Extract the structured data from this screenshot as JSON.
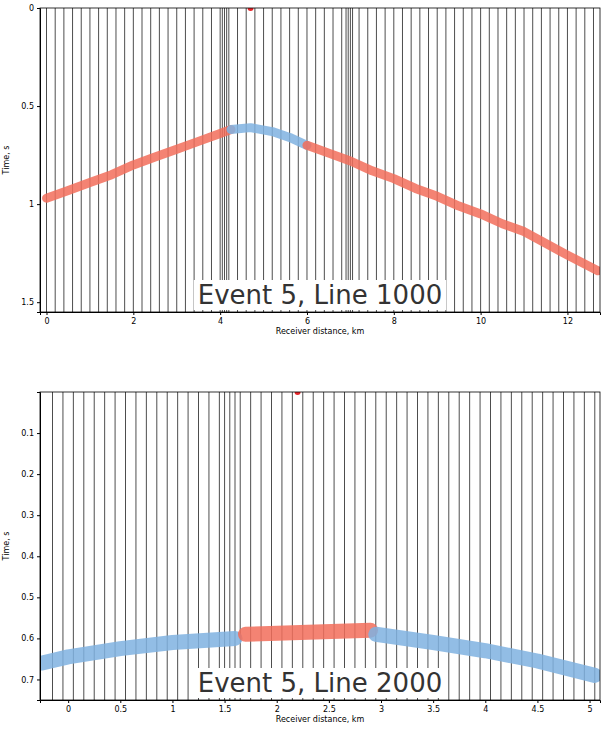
{
  "chart_data": [
    {
      "type": "line",
      "annotation": "Event 5, Line 1000",
      "x_label": "Receiver distance, km",
      "y_label": "Time, s",
      "xlim": [
        -0.15,
        12.75
      ],
      "ylim": [
        0,
        1.55
      ],
      "xticks": [
        0,
        2,
        4,
        6,
        8,
        10,
        12
      ],
      "yticks": [
        0,
        0.5,
        1,
        1.5
      ],
      "receivers": [
        0,
        0.2,
        0.4,
        0.6,
        0.8,
        1,
        1.2,
        1.4,
        1.6,
        1.8,
        2,
        2.2,
        2.4,
        2.6,
        2.8,
        3,
        3.2,
        3.4,
        3.6,
        3.8,
        4,
        4.05,
        4.1,
        4.15,
        4.2,
        4.4,
        4.6,
        4.8,
        5,
        5.2,
        5.4,
        5.6,
        5.8,
        6,
        6.2,
        6.4,
        6.6,
        6.8,
        6.9,
        6.95,
        7,
        7.05,
        7.2,
        7.4,
        7.6,
        7.8,
        8,
        8.2,
        8.4,
        8.6,
        8.8,
        9,
        9.2,
        9.4,
        9.6,
        9.8,
        10,
        10.2,
        10.4,
        10.6,
        10.8,
        11,
        11.2,
        11.4,
        11.6,
        11.8,
        12,
        12.2,
        12.4,
        12.6
      ],
      "source": {
        "x": 4.7,
        "y": 0
      },
      "series": [
        {
          "color": "#f26d5b",
          "x": [
            0,
            0.5,
            1,
            1.5,
            2,
            2.5,
            3,
            3.5,
            4,
            4.25
          ],
          "values": [
            0.97,
            0.93,
            0.89,
            0.85,
            0.8,
            0.76,
            0.72,
            0.68,
            0.64,
            0.62
          ]
        },
        {
          "color": "#7fb2e0",
          "x": [
            4.25,
            4.7,
            5.2,
            5.6,
            6
          ],
          "values": [
            0.62,
            0.61,
            0.63,
            0.66,
            0.7
          ]
        },
        {
          "color": "#f26d5b",
          "x": [
            6,
            6.5,
            7,
            7.5,
            8,
            8.5,
            9,
            9.5,
            10,
            10.5,
            11,
            11.5,
            12,
            12.7
          ],
          "values": [
            0.7,
            0.74,
            0.78,
            0.83,
            0.87,
            0.92,
            0.96,
            1.01,
            1.05,
            1.1,
            1.14,
            1.2,
            1.26,
            1.34
          ]
        }
      ]
    },
    {
      "type": "line",
      "annotation": "Event 5, Line 2000",
      "x_label": "Receiver distance, km",
      "y_label": "Time, s",
      "xlim": [
        -0.27,
        5.1
      ],
      "ylim": [
        0,
        0.75
      ],
      "xticks": [
        0,
        0.5,
        1,
        1.5,
        2,
        2.5,
        3,
        3.5,
        4,
        4.5,
        5
      ],
      "yticks": [
        0.1,
        0.2,
        0.3,
        0.4,
        0.5,
        0.6,
        0.7
      ],
      "receivers": [
        -0.15,
        -0.05,
        0.05,
        0.15,
        0.25,
        0.35,
        0.45,
        0.55,
        0.65,
        0.75,
        0.85,
        0.95,
        1.05,
        1.15,
        1.25,
        1.35,
        1.45,
        1.5,
        1.55,
        1.6,
        1.65,
        1.75,
        1.85,
        1.95,
        2.05,
        2.15,
        2.25,
        2.35,
        2.45,
        2.55,
        2.65,
        2.75,
        2.85,
        2.95,
        3.05,
        3.15,
        3.25,
        3.35,
        3.45,
        3.55,
        3.65,
        3.75,
        3.85,
        3.95,
        4.05,
        4.15,
        4.25,
        4.35,
        4.45,
        4.55,
        4.65,
        4.75,
        4.85,
        4.95,
        5.05
      ],
      "source": {
        "x": 2.2,
        "y": 0
      },
      "series": [
        {
          "color": "#7fb2e0",
          "x": [
            -0.25,
            0,
            0.5,
            1,
            1.6
          ],
          "values": [
            0.66,
            0.645,
            0.625,
            0.61,
            0.6
          ]
        },
        {
          "color": "#f26d5b",
          "x": [
            1.7,
            2.3,
            2.9
          ],
          "values": [
            0.59,
            0.585,
            0.58
          ]
        },
        {
          "color": "#7fb2e0",
          "x": [
            2.95,
            3.5,
            4,
            4.5,
            5.05
          ],
          "values": [
            0.59,
            0.61,
            0.63,
            0.655,
            0.69
          ]
        }
      ]
    }
  ]
}
